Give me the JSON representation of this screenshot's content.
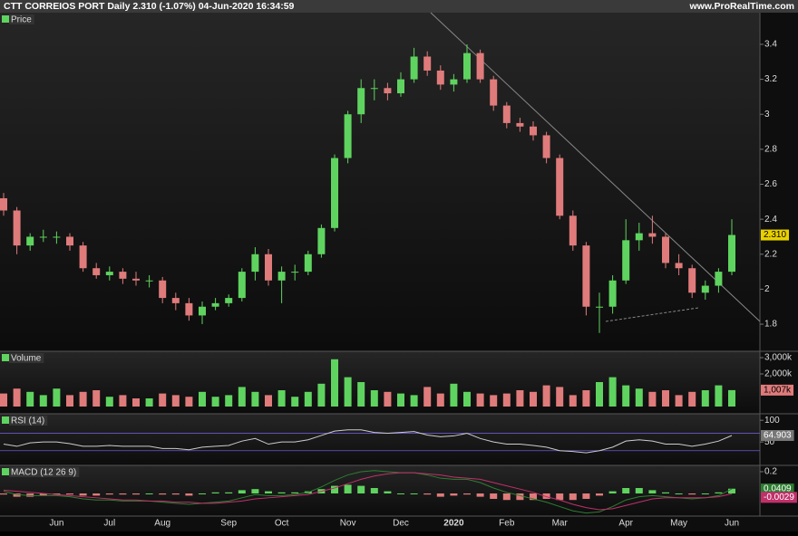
{
  "header": {
    "title": "CTT CORREIOS PORT Daily 2.310 (-1.07%) 04-Jun-2020 16:34:59",
    "source": "www.ProRealTime.com"
  },
  "chart_data": [
    {
      "type": "candlestick",
      "legend": "Price",
      "categories": [
        null,
        null,
        null,
        null,
        "Jun",
        null,
        null,
        null,
        "Jul",
        null,
        null,
        null,
        "Aug",
        null,
        null,
        null,
        null,
        "Sep",
        null,
        null,
        null,
        "Oct",
        null,
        null,
        null,
        null,
        "Nov",
        null,
        null,
        null,
        "Dec",
        null,
        null,
        null,
        "2020",
        null,
        null,
        null,
        "Feb",
        null,
        null,
        null,
        "Mar",
        null,
        null,
        null,
        null,
        "Apr",
        null,
        null,
        null,
        "May",
        null,
        null,
        null,
        "Jun"
      ],
      "open": [
        2.52,
        2.45,
        2.25,
        2.3,
        2.3,
        2.3,
        2.25,
        2.12,
        2.08,
        2.1,
        2.06,
        2.05,
        2.05,
        1.95,
        1.92,
        1.85,
        1.9,
        1.92,
        1.95,
        2.1,
        2.2,
        2.05,
        2.1,
        2.1,
        2.2,
        2.35,
        2.75,
        3.0,
        3.15,
        3.15,
        3.12,
        3.2,
        3.33,
        3.25,
        3.17,
        3.2,
        3.35,
        3.2,
        3.05,
        2.95,
        2.93,
        2.88,
        2.75,
        2.42,
        2.25,
        1.9,
        1.9,
        2.05,
        2.28,
        2.32,
        2.3,
        2.15,
        2.12,
        1.98,
        2.02,
        2.1
      ],
      "high": [
        2.55,
        2.47,
        2.32,
        2.34,
        2.33,
        2.32,
        2.27,
        2.15,
        2.13,
        2.12,
        2.1,
        2.08,
        2.07,
        1.98,
        1.95,
        1.93,
        1.95,
        1.97,
        2.12,
        2.24,
        2.23,
        2.13,
        2.14,
        2.22,
        2.37,
        2.77,
        3.02,
        3.2,
        3.2,
        3.18,
        3.24,
        3.38,
        3.36,
        3.28,
        3.23,
        3.4,
        3.37,
        3.22,
        3.07,
        2.98,
        2.96,
        2.9,
        2.77,
        2.45,
        2.27,
        1.98,
        2.08,
        2.4,
        2.38,
        2.42,
        2.32,
        2.2,
        2.14,
        2.05,
        2.12,
        2.4
      ],
      "low": [
        2.42,
        2.2,
        2.22,
        2.27,
        2.26,
        2.22,
        2.1,
        2.06,
        2.05,
        2.03,
        2.02,
        2.01,
        1.92,
        1.88,
        1.82,
        1.8,
        1.88,
        1.9,
        1.93,
        2.05,
        2.02,
        1.92,
        2.05,
        2.08,
        2.18,
        2.33,
        2.72,
        2.95,
        3.08,
        3.08,
        3.1,
        3.18,
        3.22,
        3.14,
        3.13,
        3.18,
        3.18,
        3.02,
        2.92,
        2.9,
        2.85,
        2.72,
        2.4,
        2.22,
        1.85,
        1.75,
        1.86,
        2.03,
        2.22,
        2.26,
        2.12,
        2.08,
        1.95,
        1.94,
        1.98,
        2.08
      ],
      "close": [
        2.45,
        2.25,
        2.3,
        2.3,
        2.3,
        2.25,
        2.12,
        2.08,
        2.1,
        2.06,
        2.05,
        2.05,
        1.95,
        1.92,
        1.85,
        1.9,
        1.92,
        1.95,
        2.1,
        2.2,
        2.05,
        2.1,
        2.1,
        2.2,
        2.35,
        2.75,
        3.0,
        3.15,
        3.15,
        3.12,
        3.2,
        3.33,
        3.25,
        3.17,
        3.2,
        3.35,
        3.2,
        3.05,
        2.95,
        2.93,
        2.88,
        2.75,
        2.42,
        2.25,
        1.9,
        1.9,
        2.05,
        2.28,
        2.32,
        2.3,
        2.15,
        2.12,
        1.98,
        2.02,
        2.1,
        2.31
      ],
      "ylim": [
        1.645,
        3.581
      ],
      "yticks": [
        1.8,
        2,
        2.2,
        2.4,
        2.6,
        2.8,
        3,
        3.2,
        3.4
      ],
      "last": {
        "value": 2.31,
        "label": "2.310"
      },
      "up_color": "#5fd35f",
      "down_color": "#e07b7b"
    },
    {
      "type": "bar",
      "legend": "Volume",
      "values": [
        800000,
        1100000,
        900000,
        700000,
        1100000,
        700000,
        900000,
        1000000,
        600000,
        700000,
        500000,
        500000,
        800000,
        700000,
        600000,
        900000,
        600000,
        700000,
        1200000,
        900000,
        700000,
        1000000,
        600000,
        900000,
        1400000,
        2900000,
        1800000,
        1500000,
        1000000,
        900000,
        800000,
        700000,
        1200000,
        800000,
        1400000,
        900000,
        800000,
        700000,
        800000,
        1000000,
        900000,
        1300000,
        1200000,
        700000,
        1000000,
        1500000,
        1800000,
        1300000,
        1100000,
        900000,
        1000000,
        700000,
        900000,
        1000000,
        1300000,
        1007000
      ],
      "ylim": [
        -444000,
        3389000
      ],
      "yticks": [
        {
          "value": 2000000,
          "label": "2,000k"
        },
        {
          "value": 3000000,
          "label": "3,000k"
        }
      ],
      "last": {
        "value": 1007000,
        "label": "1,007k"
      }
    },
    {
      "type": "line",
      "legend": "RSI (14)",
      "values": [
        45,
        40,
        48,
        50,
        50,
        46,
        40,
        40,
        42,
        40,
        40,
        40,
        35,
        35,
        32,
        38,
        40,
        42,
        52,
        58,
        45,
        50,
        50,
        55,
        65,
        75,
        78,
        78,
        72,
        70,
        72,
        74,
        66,
        62,
        64,
        70,
        58,
        50,
        45,
        45,
        42,
        38,
        30,
        28,
        25,
        30,
        38,
        52,
        55,
        52,
        45,
        45,
        40,
        45,
        52,
        64.903
      ],
      "levels": [
        30,
        70
      ],
      "ylim": [
        -4,
        115
      ],
      "yticks": [
        50,
        100
      ],
      "last": 64.903,
      "color": "#cccccc"
    },
    {
      "type": "macd",
      "legend": "MACD (12 26 9)",
      "series": [
        {
          "color": "#2e7d32",
          "values": [
            0.02,
            -0.01,
            -0.02,
            -0.02,
            -0.02,
            -0.03,
            -0.05,
            -0.06,
            -0.06,
            -0.07,
            -0.07,
            -0.07,
            -0.08,
            -0.09,
            -0.1,
            -0.09,
            -0.08,
            -0.07,
            -0.04,
            -0.01,
            -0.02,
            -0.02,
            -0.01,
            0.01,
            0.06,
            0.12,
            0.17,
            0.2,
            0.21,
            0.2,
            0.19,
            0.19,
            0.17,
            0.14,
            0.13,
            0.13,
            0.1,
            0.05,
            0.01,
            -0.02,
            -0.05,
            -0.08,
            -0.12,
            -0.16,
            -0.18,
            -0.17,
            -0.12,
            -0.06,
            -0.03,
            -0.02,
            -0.03,
            -0.04,
            -0.05,
            -0.04,
            -0.02,
            0.0409
          ]
        },
        {
          "color": "#c0306a",
          "values": [
            0.03,
            0.02,
            0.01,
            0,
            -0.01,
            -0.02,
            -0.03,
            -0.04,
            -0.05,
            -0.06,
            -0.06,
            -0.07,
            -0.07,
            -0.08,
            -0.08,
            -0.09,
            -0.09,
            -0.08,
            -0.07,
            -0.05,
            -0.04,
            -0.03,
            -0.02,
            -0.01,
            0.02,
            0.05,
            0.09,
            0.13,
            0.16,
            0.18,
            0.19,
            0.19,
            0.18,
            0.17,
            0.15,
            0.14,
            0.13,
            0.1,
            0.07,
            0.04,
            0.01,
            -0.03,
            -0.06,
            -0.1,
            -0.13,
            -0.15,
            -0.14,
            -0.11,
            -0.08,
            -0.05,
            -0.04,
            -0.04,
            -0.04,
            -0.04,
            -0.03,
            -0.0029
          ]
        }
      ],
      "ylim": [
        -0.208,
        0.258
      ],
      "yticks": [
        0.2
      ],
      "last": [
        0.0409,
        -0.0029
      ]
    }
  ]
}
